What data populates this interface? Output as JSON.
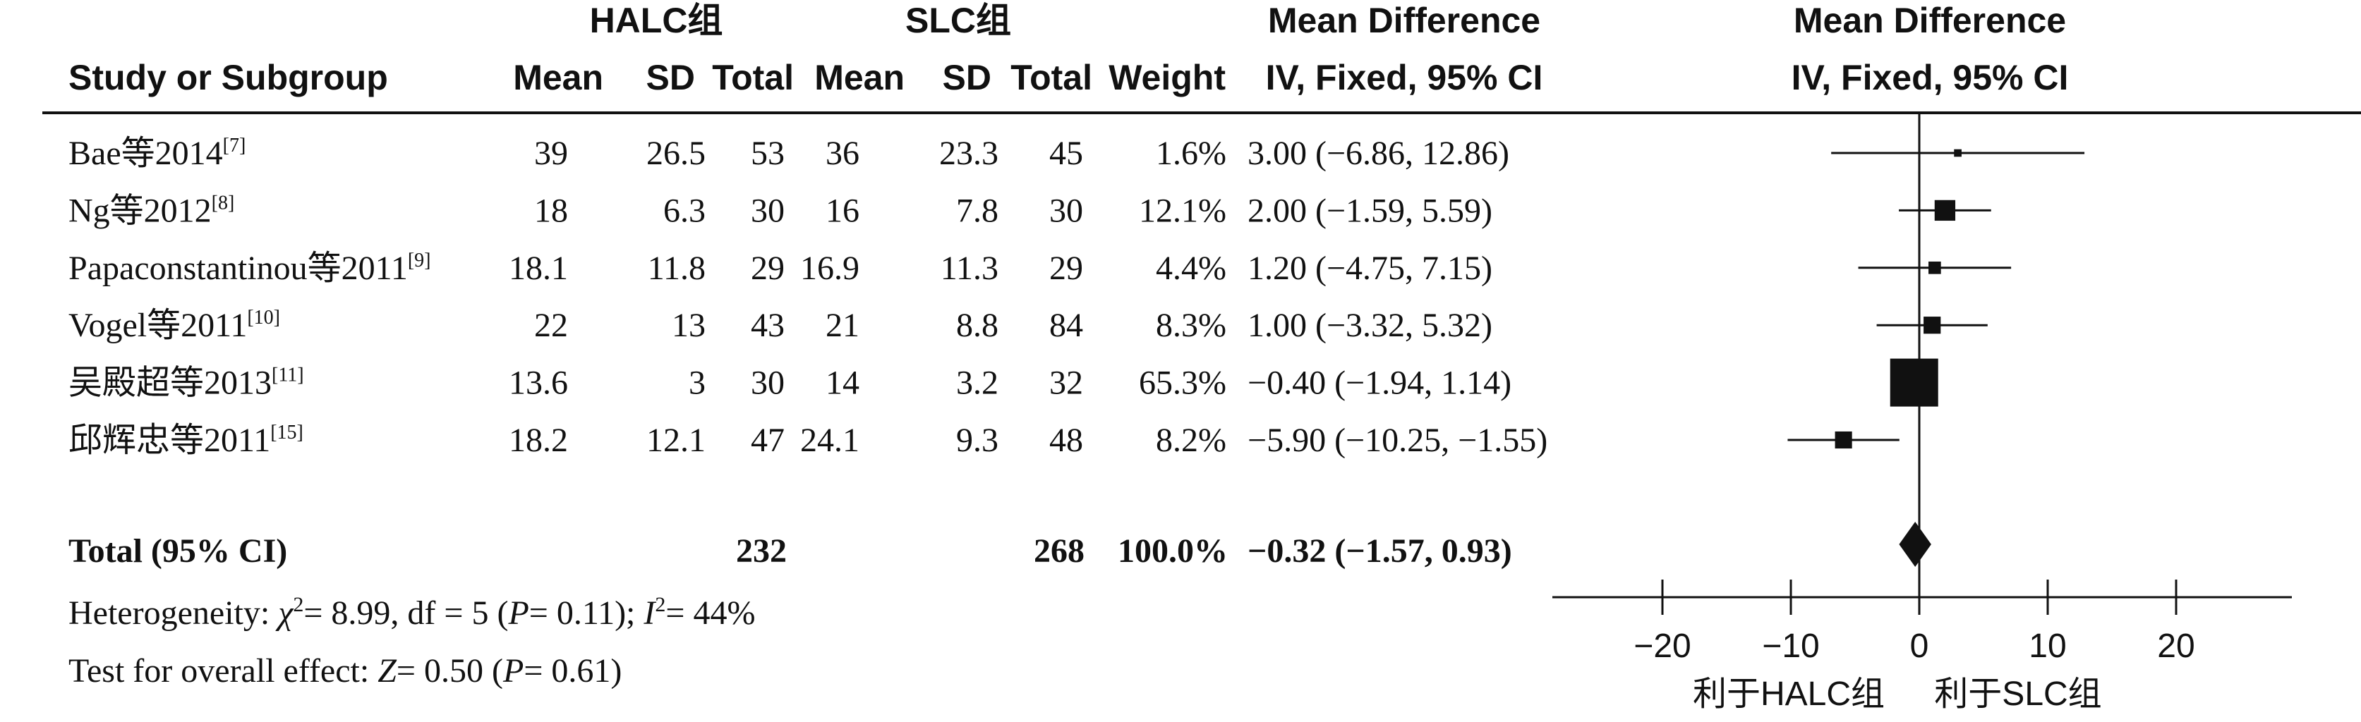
{
  "chart_data": {
    "type": "forest",
    "group_headers": {
      "experimental": "HALC组",
      "control": "SLC组"
    },
    "columns": {
      "study": "Study or Subgroup",
      "mean1": "Mean",
      "sd1": "SD",
      "total1": "Total",
      "mean2": "Mean",
      "sd2": "SD",
      "total2": "Total",
      "weight": "Weight",
      "md_line1": "Mean Difference",
      "md_line2": "IV, Fixed, 95% CI"
    },
    "plot_header": {
      "line1": "Mean Difference",
      "line2": "IV, Fixed, 95% CI"
    },
    "studies": [
      {
        "name": "Bae等2014",
        "ref": "[7]",
        "mean1": "39",
        "sd1": "26.5",
        "total1": "53",
        "mean2": "36",
        "sd2": "23.3",
        "total2": "45",
        "weight_label": "1.6%",
        "ci_label": "3.00 (−6.86, 12.86)",
        "md": 3.0,
        "lower": -6.86,
        "upper": 12.86,
        "weight": 1.6
      },
      {
        "name": "Ng等2012",
        "ref": "[8]",
        "mean1": "18",
        "sd1": "6.3",
        "total1": "30",
        "mean2": "16",
        "sd2": "7.8",
        "total2": "30",
        "weight_label": "12.1%",
        "ci_label": "2.00 (−1.59, 5.59)",
        "md": 2.0,
        "lower": -1.59,
        "upper": 5.59,
        "weight": 12.1
      },
      {
        "name": "Papaconstantinou等2011",
        "ref": "[9]",
        "mean1": "18.1",
        "sd1": "11.8",
        "total1": "29",
        "mean2": "16.9",
        "sd2": "11.3",
        "total2": "29",
        "weight_label": "4.4%",
        "ci_label": "1.20 (−4.75, 7.15)",
        "md": 1.2,
        "lower": -4.75,
        "upper": 7.15,
        "weight": 4.4
      },
      {
        "name": "Vogel等2011",
        "ref": "[10]",
        "mean1": "22",
        "sd1": "13",
        "total1": "43",
        "mean2": "21",
        "sd2": "8.8",
        "total2": "84",
        "weight_label": "8.3%",
        "ci_label": "1.00 (−3.32, 5.32)",
        "md": 1.0,
        "lower": -3.32,
        "upper": 5.32,
        "weight": 8.3
      },
      {
        "name": "吴殿超等2013",
        "ref": "[11]",
        "mean1": "13.6",
        "sd1": "3",
        "total1": "30",
        "mean2": "14",
        "sd2": "3.2",
        "total2": "32",
        "weight_label": "65.3%",
        "ci_label": "−0.40 (−1.94, 1.14)",
        "md": -0.4,
        "lower": -1.94,
        "upper": 1.14,
        "weight": 65.3
      },
      {
        "name": "邱辉忠等2011",
        "ref": "[15]",
        "mean1": "18.2",
        "sd1": "12.1",
        "total1": "47",
        "mean2": "24.1",
        "sd2": "9.3",
        "total2": "48",
        "weight_label": "8.2%",
        "ci_label": "−5.90 (−10.25, −1.55)",
        "md": -5.9,
        "lower": -10.25,
        "upper": -1.55,
        "weight": 8.2
      }
    ],
    "total": {
      "name": "Total (95% CI)",
      "total1": "232",
      "total2": "268",
      "weight_label": "100.0%",
      "ci_label": "−0.32 (−1.57, 0.93)",
      "md": -0.32,
      "lower": -1.57,
      "upper": 0.93
    },
    "heterogeneity": {
      "label": "Heterogeneity: ",
      "chi_sym": "χ",
      "chi_sup": "2",
      "chi_rest": "= 8.99, df = 5 (",
      "p_sym": "P",
      "p_rest": "= 0.11); ",
      "i_sym": "I",
      "i_sup": "2",
      "i_rest": "= 44%"
    },
    "overall_effect": {
      "label": "Test for overall effect: ",
      "z_sym": "Z",
      "z_rest": "= 0.50 (",
      "p_sym": "P",
      "p_rest": "= 0.61)"
    },
    "x_axis": {
      "ticks": [
        -20,
        -10,
        0,
        10,
        20
      ],
      "tick_labels": [
        "−20",
        "−10",
        "0",
        "10",
        "20"
      ],
      "xlim": [
        -28.5,
        28.5
      ],
      "favours_left": "利于HALC组",
      "favours_right": "利于SLC组"
    }
  }
}
